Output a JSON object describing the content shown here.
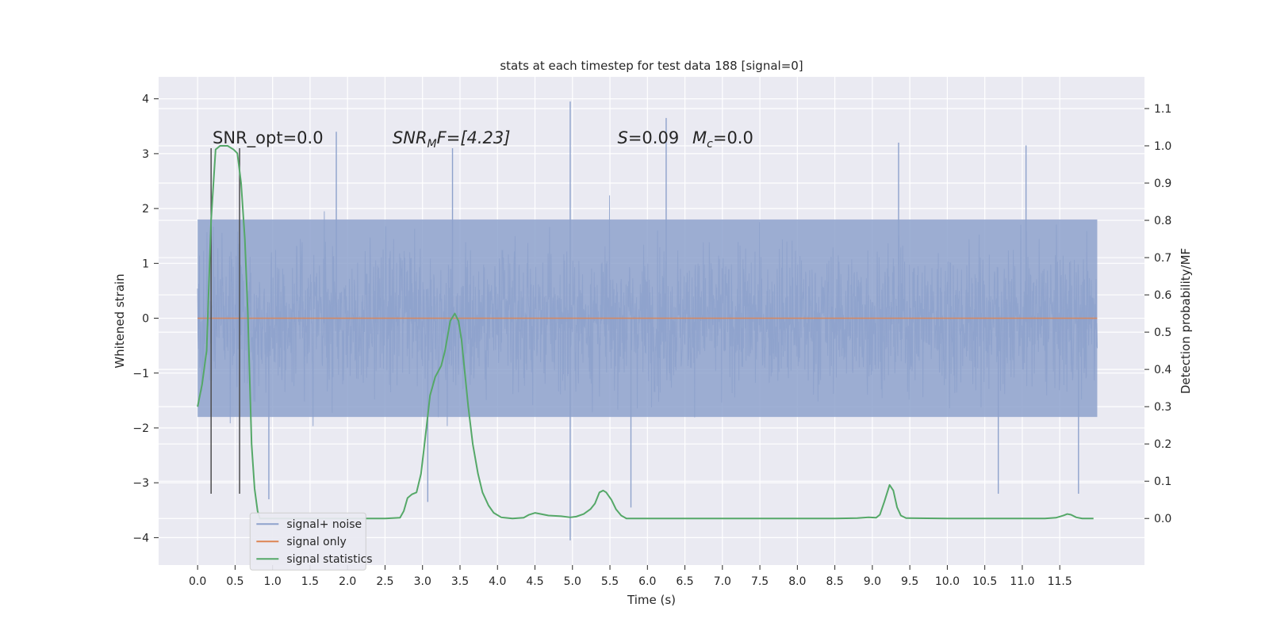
{
  "chart_data": {
    "type": "line",
    "title": "stats at each timestep for test data 188 [signal=0]",
    "xlabel": "Time (s)",
    "ylabel": "Whitened strain",
    "y2label": "Detection probability/MF",
    "xlim": [
      -0.52,
      12.63
    ],
    "ylim": [
      -4.5,
      4.4
    ],
    "y2lim": [
      -0.125,
      1.185
    ],
    "xticks": [
      0.0,
      0.5,
      1.0,
      1.5,
      2.0,
      2.5,
      3.0,
      3.5,
      4.0,
      4.5,
      5.0,
      5.5,
      6.0,
      6.5,
      7.0,
      7.5,
      8.0,
      8.5,
      9.0,
      9.5,
      10.0,
      10.5,
      11.0,
      11.5
    ],
    "xtick_labels": [
      "0.0",
      "0.5",
      "1.0",
      "1.5",
      "2.0",
      "2.5",
      "3.0",
      "3.5",
      "4.0",
      "4.5",
      "5.0",
      "5.5",
      "6.0",
      "6.5",
      "7.0",
      "7.5",
      "8.0",
      "8.5",
      "9.0",
      "9.5",
      "10.0",
      "10.5",
      "11.0",
      "11.5"
    ],
    "yticks": [
      -4,
      -3,
      -2,
      -1,
      0,
      1,
      2,
      3,
      4
    ],
    "ytick_labels": [
      "−4",
      "−3",
      "−2",
      "−1",
      "0",
      "1",
      "2",
      "3",
      "4"
    ],
    "y2ticks": [
      0.0,
      0.1,
      0.2,
      0.3,
      0.4,
      0.5,
      0.6,
      0.7,
      0.8,
      0.9,
      1.0,
      1.1
    ],
    "y2tick_labels": [
      "0.0",
      "0.1",
      "0.2",
      "0.3",
      "0.4",
      "0.5",
      "0.6",
      "0.7",
      "0.8",
      "0.9",
      "1.0",
      "1.1"
    ],
    "grid": true,
    "legend_position": "lower-left",
    "annotations": {
      "snr_opt": "SNR_opt=0.0",
      "snr_mf_main": "SNR",
      "snr_mf_sub": "M",
      "snr_mf_rest": "F=[4.23]",
      "s_main": "S",
      "s_rest": "=0.09",
      "mc_main": "M",
      "mc_sub": "c",
      "mc_rest": "=0.0"
    },
    "time_range": [
      0.0,
      12.0
    ],
    "series": [
      {
        "name": "signal+ noise",
        "color": "#8ea2cc",
        "description": "whitened noise, roughly within ±1.8 with spikes up to about ±3.5",
        "typical_envelope": [
          -1.8,
          1.8
        ],
        "spikes": [
          {
            "x": 4.97,
            "y": 3.95
          },
          {
            "x": 6.25,
            "y": 3.65
          },
          {
            "x": 1.85,
            "y": 3.4
          },
          {
            "x": 9.35,
            "y": 3.2
          },
          {
            "x": 11.05,
            "y": 3.15
          },
          {
            "x": 3.4,
            "y": 3.1
          },
          {
            "x": 0.95,
            "y": -3.3
          },
          {
            "x": 3.07,
            "y": -3.35
          },
          {
            "x": 4.97,
            "y": -4.05
          },
          {
            "x": 5.78,
            "y": -3.45
          },
          {
            "x": 10.68,
            "y": -3.2
          },
          {
            "x": 11.75,
            "y": -3.2
          }
        ]
      },
      {
        "name": "signal only",
        "color": "#dd8452",
        "values": [
          [
            0.0,
            0.0
          ],
          [
            12.0,
            0.0
          ]
        ]
      },
      {
        "name": "signal statistics",
        "color": "#55a868",
        "axis": "right",
        "points": [
          [
            0.0,
            0.3
          ],
          [
            0.06,
            0.36
          ],
          [
            0.12,
            0.45
          ],
          [
            0.18,
            0.8
          ],
          [
            0.24,
            0.99
          ],
          [
            0.3,
            1.0
          ],
          [
            0.4,
            1.0
          ],
          [
            0.48,
            0.99
          ],
          [
            0.53,
            0.98
          ],
          [
            0.58,
            0.9
          ],
          [
            0.63,
            0.75
          ],
          [
            0.67,
            0.55
          ],
          [
            0.72,
            0.2
          ],
          [
            0.76,
            0.08
          ],
          [
            0.8,
            0.02
          ],
          [
            0.83,
            0.0
          ],
          [
            1.0,
            0.0
          ],
          [
            1.5,
            0.0
          ],
          [
            2.0,
            0.0
          ],
          [
            2.5,
            0.0
          ],
          [
            2.7,
            0.002
          ],
          [
            2.75,
            0.02
          ],
          [
            2.8,
            0.055
          ],
          [
            2.86,
            0.065
          ],
          [
            2.92,
            0.07
          ],
          [
            2.98,
            0.12
          ],
          [
            3.05,
            0.24
          ],
          [
            3.1,
            0.33
          ],
          [
            3.17,
            0.38
          ],
          [
            3.25,
            0.41
          ],
          [
            3.3,
            0.45
          ],
          [
            3.37,
            0.53
          ],
          [
            3.43,
            0.55
          ],
          [
            3.48,
            0.53
          ],
          [
            3.52,
            0.48
          ],
          [
            3.56,
            0.4
          ],
          [
            3.61,
            0.3
          ],
          [
            3.67,
            0.2
          ],
          [
            3.74,
            0.12
          ],
          [
            3.8,
            0.07
          ],
          [
            3.88,
            0.035
          ],
          [
            3.95,
            0.015
          ],
          [
            4.05,
            0.003
          ],
          [
            4.2,
            0.0
          ],
          [
            4.35,
            0.002
          ],
          [
            4.42,
            0.01
          ],
          [
            4.5,
            0.015
          ],
          [
            4.58,
            0.012
          ],
          [
            4.68,
            0.008
          ],
          [
            4.85,
            0.006
          ],
          [
            4.97,
            0.003
          ],
          [
            5.05,
            0.005
          ],
          [
            5.15,
            0.012
          ],
          [
            5.24,
            0.025
          ],
          [
            5.3,
            0.04
          ],
          [
            5.36,
            0.07
          ],
          [
            5.41,
            0.075
          ],
          [
            5.45,
            0.07
          ],
          [
            5.52,
            0.05
          ],
          [
            5.58,
            0.025
          ],
          [
            5.65,
            0.008
          ],
          [
            5.72,
            0.0
          ],
          [
            6.5,
            0.0
          ],
          [
            7.5,
            0.0
          ],
          [
            8.5,
            0.0
          ],
          [
            8.8,
            0.001
          ],
          [
            8.95,
            0.003
          ],
          [
            9.05,
            0.002
          ],
          [
            9.1,
            0.01
          ],
          [
            9.16,
            0.045
          ],
          [
            9.23,
            0.09
          ],
          [
            9.28,
            0.075
          ],
          [
            9.33,
            0.03
          ],
          [
            9.38,
            0.008
          ],
          [
            9.45,
            0.001
          ],
          [
            10.0,
            0.0
          ],
          [
            10.5,
            0.0
          ],
          [
            11.0,
            0.0
          ],
          [
            11.3,
            0.0
          ],
          [
            11.45,
            0.002
          ],
          [
            11.55,
            0.008
          ],
          [
            11.6,
            0.012
          ],
          [
            11.65,
            0.01
          ],
          [
            11.72,
            0.003
          ],
          [
            11.8,
            0.0
          ],
          [
            11.95,
            0.0
          ]
        ]
      }
    ],
    "vertical_markers": [
      {
        "x": 0.18,
        "ymin": -3.2,
        "ymax": 3.1,
        "color": "#4d4d4d"
      },
      {
        "x": 0.56,
        "ymin": -3.2,
        "ymax": 3.1,
        "color": "#4d4d4d"
      }
    ]
  }
}
